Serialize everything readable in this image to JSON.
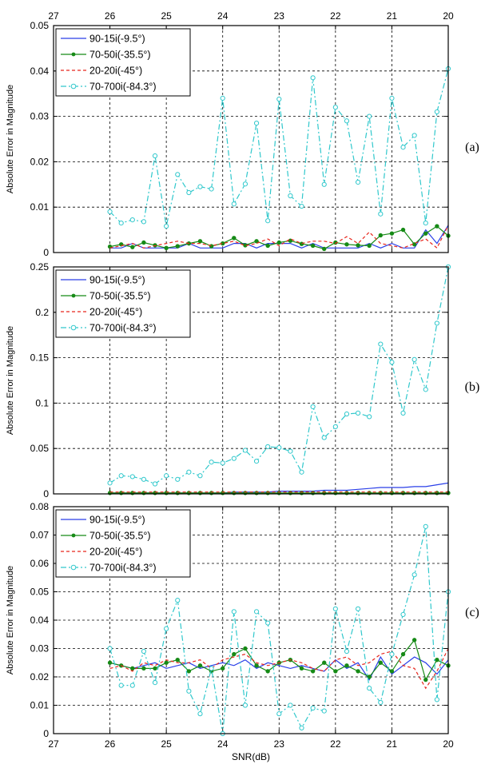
{
  "colors": {
    "s1": "#2a3fe8",
    "s2": "#168a16",
    "s3": "#e8261c",
    "s4": "#30c8cc"
  },
  "chart_data": [
    {
      "type": "line",
      "panel_label": "(a)",
      "ylabel": "Absolute Error in Magnitude",
      "xlabel": "",
      "x_ticks": [
        "27",
        "26",
        "25",
        "24",
        "23",
        "22",
        "21",
        "20"
      ],
      "y_ticks": [
        "0",
        "0.01",
        "0.02",
        "0.03",
        "0.04",
        "0.05"
      ],
      "xlim": [
        27,
        20
      ],
      "ylim": [
        0,
        0.05
      ],
      "grid": true,
      "legend_position": "top-left",
      "x": [
        26,
        25.8,
        25.6,
        25.4,
        25.2,
        25,
        24.8,
        24.6,
        24.4,
        24.2,
        24,
        23.8,
        23.6,
        23.4,
        23.2,
        23,
        22.8,
        22.6,
        22.4,
        22.2,
        22,
        21.8,
        21.6,
        21.4,
        21.2,
        21,
        20.8,
        20.6,
        20.4,
        20.2,
        20
      ],
      "series": [
        {
          "name": "90-15i(-9.5°)",
          "values": [
            0.001,
            0.001,
            0.002,
            0.001,
            0.001,
            0.001,
            0.001,
            0.002,
            0.001,
            0.001,
            0.001,
            0.002,
            0.002,
            0.001,
            0.002,
            0.002,
            0.002,
            0.001,
            0.002,
            0.001,
            0.001,
            0.001,
            0.001,
            0.002,
            0.001,
            0.002,
            0.001,
            0.001,
            0.005,
            0.002,
            0.006
          ]
        },
        {
          "name": "70-50i(-35.5°)",
          "values": [
            0.0013,
            0.0018,
            0.0012,
            0.0022,
            0.0016,
            0.001,
            0.0014,
            0.002,
            0.0025,
            0.0014,
            0.002,
            0.0032,
            0.0016,
            0.0025,
            0.0015,
            0.0022,
            0.0026,
            0.0019,
            0.0015,
            0.0008,
            0.0022,
            0.0018,
            0.0016,
            0.0015,
            0.0038,
            0.0042,
            0.005,
            0.0018,
            0.0042,
            0.0058,
            0.0037
          ]
        },
        {
          "name": "20-20i(-45°)",
          "values": [
            0.001,
            0.0015,
            0.002,
            0.001,
            0.0015,
            0.002,
            0.0025,
            0.002,
            0.002,
            0.0015,
            0.002,
            0.0025,
            0.0015,
            0.002,
            0.003,
            0.0015,
            0.003,
            0.002,
            0.0025,
            0.0025,
            0.002,
            0.0035,
            0.002,
            0.0045,
            0.002,
            0.0015,
            0.001,
            0.002,
            0.003,
            0.001,
            0.006
          ]
        },
        {
          "name": "70-700i(-84.3°)",
          "values": [
            0.009,
            0.0065,
            0.0072,
            0.0068,
            0.0213,
            0.0058,
            0.0172,
            0.0132,
            0.0145,
            0.014,
            0.034,
            0.0107,
            0.0151,
            0.0285,
            0.007,
            0.0338,
            0.0125,
            0.0102,
            0.0385,
            0.015,
            0.032,
            0.029,
            0.0155,
            0.03,
            0.0085,
            0.034,
            0.0232,
            0.0258,
            0.0065,
            0.031,
            0.0405
          ]
        }
      ]
    },
    {
      "type": "line",
      "panel_label": "(b)",
      "ylabel": "Absolute Error in Magnitude",
      "xlabel": "",
      "x_ticks": [],
      "y_ticks": [
        "0",
        "0.05",
        "0.1",
        "0.15",
        "0.2",
        "0.25"
      ],
      "xlim": [
        27,
        20
      ],
      "ylim": [
        0,
        0.25
      ],
      "grid": true,
      "legend_position": "top-left",
      "x": [
        26,
        25.8,
        25.6,
        25.4,
        25.2,
        25,
        24.8,
        24.6,
        24.4,
        24.2,
        24,
        23.8,
        23.6,
        23.4,
        23.2,
        23,
        22.8,
        22.6,
        22.4,
        22.2,
        22,
        21.8,
        21.6,
        21.4,
        21.2,
        21,
        20.8,
        20.6,
        20.4,
        20.2,
        20
      ],
      "series": [
        {
          "name": "90-15i(-9.5°)",
          "values": [
            0.001,
            0.001,
            0.001,
            0.001,
            0.001,
            0.001,
            0.001,
            0.001,
            0.001,
            0.001,
            0.001,
            0.002,
            0.002,
            0.002,
            0.002,
            0.003,
            0.003,
            0.003,
            0.003,
            0.004,
            0.004,
            0.004,
            0.005,
            0.006,
            0.007,
            0.007,
            0.007,
            0.008,
            0.008,
            0.01,
            0.012
          ]
        },
        {
          "name": "70-50i(-35.5°)",
          "values": [
            0.001,
            0.001,
            0.001,
            0.001,
            0.001,
            0.001,
            0.001,
            0.001,
            0.001,
            0.001,
            0.001,
            0.001,
            0.001,
            0.001,
            0.001,
            0.001,
            0.001,
            0.001,
            0.001,
            0.001,
            0.001,
            0.001,
            0.001,
            0.001,
            0.001,
            0.001,
            0.001,
            0.001,
            0.001,
            0.001,
            0.001
          ]
        },
        {
          "name": "20-20i(-45°)",
          "values": [
            0.002,
            0.002,
            0.002,
            0.002,
            0.002,
            0.002,
            0.002,
            0.002,
            0.002,
            0.002,
            0.002,
            0.002,
            0.002,
            0.002,
            0.002,
            0.002,
            0.002,
            0.002,
            0.002,
            0.002,
            0.002,
            0.002,
            0.002,
            0.002,
            0.002,
            0.002,
            0.002,
            0.002,
            0.002,
            0.002,
            0.002
          ]
        },
        {
          "name": "70-700i(-84.3°)",
          "values": [
            0.012,
            0.02,
            0.019,
            0.016,
            0.011,
            0.02,
            0.016,
            0.024,
            0.02,
            0.035,
            0.034,
            0.039,
            0.048,
            0.036,
            0.052,
            0.051,
            0.047,
            0.024,
            0.096,
            0.062,
            0.074,
            0.088,
            0.089,
            0.085,
            0.165,
            0.145,
            0.089,
            0.148,
            0.115,
            0.188,
            0.25
          ]
        }
      ]
    },
    {
      "type": "line",
      "panel_label": "(c)",
      "ylabel": "Absolute Error in Magnitude",
      "xlabel": "SNR(dB)",
      "x_ticks": [
        "27",
        "26",
        "25",
        "24",
        "23",
        "22",
        "21",
        "20"
      ],
      "y_ticks": [
        "0",
        "0.01",
        "0.02",
        "0.03",
        "0.04",
        "0.05",
        "0.06",
        "0.07",
        "0.08"
      ],
      "xlim": [
        27,
        20
      ],
      "ylim": [
        0,
        0.08
      ],
      "grid": true,
      "legend_position": "top-left",
      "x": [
        26,
        25.8,
        25.6,
        25.4,
        25.2,
        25,
        24.8,
        24.6,
        24.4,
        24.2,
        24,
        23.8,
        23.6,
        23.4,
        23.2,
        23,
        22.8,
        22.6,
        22.4,
        22.2,
        22,
        21.8,
        21.6,
        21.4,
        21.2,
        21,
        20.8,
        20.6,
        20.4,
        20.2,
        20
      ],
      "series": [
        {
          "name": "90-15i(-9.5°)",
          "values": [
            0.025,
            0.024,
            0.023,
            0.024,
            0.025,
            0.023,
            0.024,
            0.025,
            0.023,
            0.024,
            0.025,
            0.024,
            0.026,
            0.023,
            0.025,
            0.024,
            0.023,
            0.024,
            0.023,
            0.022,
            0.026,
            0.023,
            0.025,
            0.019,
            0.027,
            0.021,
            0.024,
            0.027,
            0.025,
            0.021,
            0.026
          ]
        },
        {
          "name": "70-50i(-35.5°)",
          "values": [
            0.025,
            0.024,
            0.023,
            0.023,
            0.023,
            0.025,
            0.026,
            0.022,
            0.024,
            0.022,
            0.023,
            0.028,
            0.03,
            0.024,
            0.022,
            0.025,
            0.026,
            0.023,
            0.022,
            0.025,
            0.022,
            0.024,
            0.022,
            0.02,
            0.025,
            0.022,
            0.028,
            0.033,
            0.019,
            0.026,
            0.024
          ]
        },
        {
          "name": "20-20i(-45°)",
          "values": [
            0.023,
            0.024,
            0.022,
            0.025,
            0.024,
            0.026,
            0.025,
            0.025,
            0.026,
            0.023,
            0.026,
            0.027,
            0.028,
            0.025,
            0.024,
            0.025,
            0.026,
            0.025,
            0.023,
            0.022,
            0.026,
            0.027,
            0.024,
            0.025,
            0.028,
            0.029,
            0.024,
            0.023,
            0.016,
            0.022,
            0.03
          ]
        },
        {
          "name": "70-700i(-84.3°)",
          "values": [
            0.03,
            0.017,
            0.017,
            0.029,
            0.018,
            0.037,
            0.047,
            0.015,
            0.007,
            0.023,
            0.0,
            0.043,
            0.01,
            0.043,
            0.039,
            0.007,
            0.01,
            0.002,
            0.009,
            0.008,
            0.044,
            0.029,
            0.044,
            0.016,
            0.011,
            0.028,
            0.042,
            0.056,
            0.073,
            0.012,
            0.05
          ]
        }
      ]
    }
  ]
}
